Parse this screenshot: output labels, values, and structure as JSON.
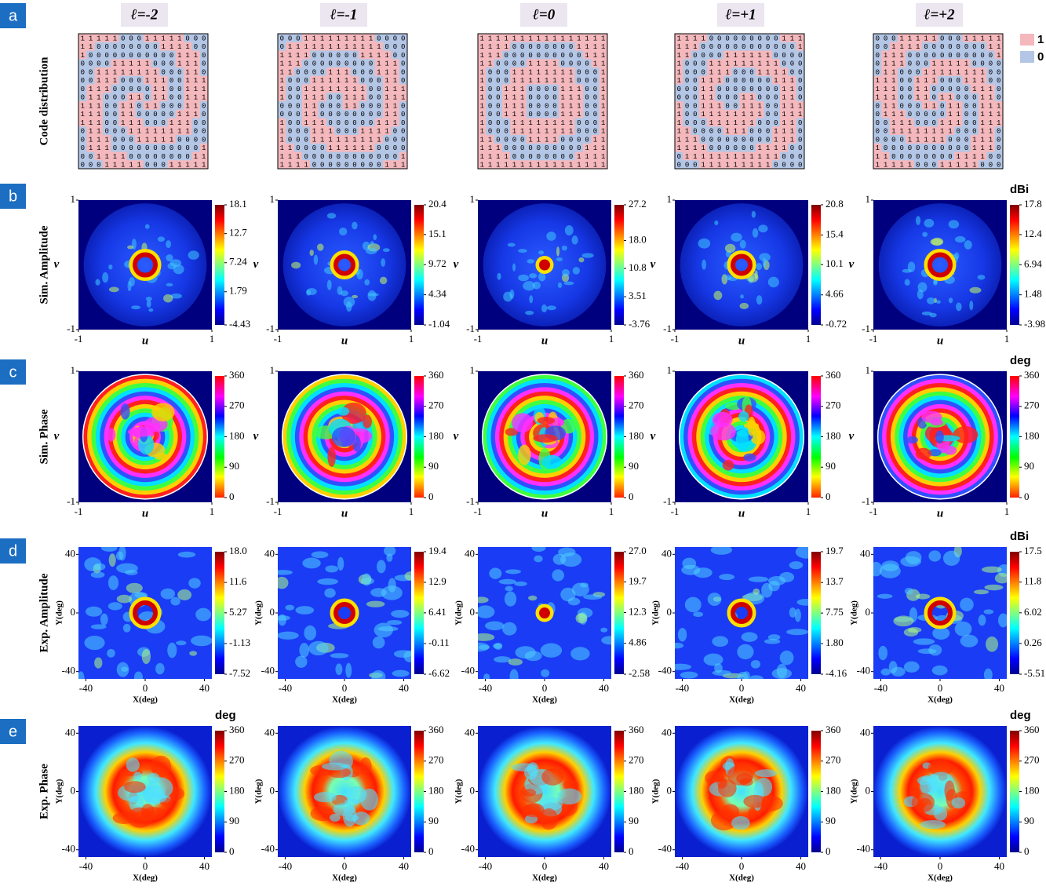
{
  "header": {
    "columns": [
      "ℓ=-2",
      "ℓ=-1",
      "ℓ=0",
      "ℓ=+1",
      "ℓ=+2"
    ]
  },
  "legend": [
    {
      "label": "1",
      "color": "#f4b8bc"
    },
    {
      "label": "0",
      "color": "#b3c6e6"
    }
  ],
  "rows": [
    {
      "letter": "a",
      "label": "Code distribution",
      "code_maps": [
        [
          "1111100011111000",
          "1100000000111100",
          "1000000000001110",
          "0000111110001110",
          "0011111111000110",
          "0011100011100111",
          "0111000001100111",
          "0110001101100111",
          "1110011011000110",
          "1110011000001110",
          "1110011100011100",
          "0110001111111100",
          "0111000111110000",
          "0111000000000001",
          "0011110000000011",
          "0001111100011111"
        ],
        [
          "0001111111110000",
          "0111111111111000",
          "1111000000111100",
          "1110000000001110",
          "1100001110001110",
          "1000111111000110",
          "1001111111100111",
          "1001110011100111",
          "0001100011000110",
          "0001100000000110",
          "1001110000001110",
          "1000111000111100",
          "1000111111111000",
          "1100001111110000",
          "1110000000000001",
          "1111000000000111"
        ],
        [
          "1111111111111111",
          "1111000000001111",
          "1110000000000111",
          "1100001111000011",
          "1000111111110001",
          "1000111111110001",
          "1001110000111001",
          "1001110000111001",
          "1001110000111001",
          "1001110000111001",
          "1000111111110001",
          "1000111111110001",
          "1100001111000011",
          "1110000000000111",
          "1111000000001111",
          "1111111111111111"
        ],
        [
          "1111000000000111",
          "1110000000000001",
          "1100001111110000",
          "1000111111111000",
          "1000111000111100",
          "1001110000001110",
          "0001100000000110",
          "0001100011000110",
          "1001110011100111",
          "1001111111100111",
          "1000111111000110",
          "1100001110001110",
          "1110000000001110",
          "1111000000111100",
          "0111111111111000",
          "0001111111110000"
        ],
        [
          "0001111100011111",
          "0011110000000011",
          "0111000000000001",
          "0111000111110000",
          "0110001111111100",
          "1110011100011100",
          "1110011000001110",
          "1110011011000110",
          "0110001101100111",
          "0111000001100111",
          "0011100011100111",
          "0011111111000110",
          "0000111110001110",
          "1000000000001110",
          "1100000000111100",
          "1111100011111000"
        ]
      ]
    },
    {
      "letter": "b",
      "label": "Sim. Amplitude",
      "x_label": "u",
      "y_label": "v",
      "xlim": [
        -1,
        1
      ],
      "ylim": [
        -1,
        1
      ],
      "xticks": [
        -1,
        1
      ],
      "yticks": [
        -1,
        1
      ],
      "colorbars": [
        {
          "lim": [
            -4.43,
            18.1
          ],
          "ticks": [
            18.1,
            12.7,
            7.24,
            1.79,
            -4.43
          ]
        },
        {
          "lim": [
            -1.04,
            20.4
          ],
          "ticks": [
            20.4,
            15.1,
            9.72,
            4.34,
            -1.04
          ]
        },
        {
          "lim": [
            -3.76,
            27.2
          ],
          "ticks": [
            27.2,
            {
              "value": 18,
              "label": "18.0"
            },
            10.8,
            3.51,
            -3.76
          ]
        },
        {
          "lim": [
            -0.72,
            20.8
          ],
          "ticks": [
            20.8,
            15.4,
            10.1,
            4.66,
            -0.72
          ]
        },
        {
          "unit": "dBi",
          "lim": [
            -3.98,
            17.8
          ],
          "ticks": [
            17.8,
            12.4,
            6.94,
            1.48,
            -3.98
          ]
        }
      ]
    },
    {
      "letter": "c",
      "label": "Sim.  Phase",
      "x_label": "u",
      "y_label": "v",
      "xlim": [
        -1,
        1
      ],
      "ylim": [
        -1,
        1
      ],
      "xticks": [
        -1,
        1
      ],
      "yticks": [
        -1,
        1
      ],
      "colorbars": [
        {
          "lim": [
            0,
            360
          ],
          "ticks": [
            360,
            270,
            180,
            90,
            0
          ]
        },
        {
          "lim": [
            0,
            360
          ],
          "ticks": [
            360,
            270,
            180,
            90,
            0
          ]
        },
        {
          "lim": [
            0,
            360
          ],
          "ticks": [
            360,
            270,
            180,
            90,
            0
          ]
        },
        {
          "lim": [
            0,
            360
          ],
          "ticks": [
            360,
            270,
            180,
            90,
            0
          ]
        },
        {
          "unit": "deg",
          "lim": [
            0,
            360
          ],
          "ticks": [
            360,
            270,
            180,
            90,
            0
          ]
        }
      ]
    },
    {
      "letter": "d",
      "label": "Exp. Amplitude",
      "x_label": "X(deg)",
      "y_label": "Y(deg)",
      "xlim": [
        -45,
        45
      ],
      "ylim": [
        -45,
        45
      ],
      "xticks": [
        -40,
        0,
        40
      ],
      "yticks": [
        -40,
        0,
        40
      ],
      "colorbars": [
        {
          "lim": [
            -7.52,
            18
          ],
          "ticks": [
            {
              "value": 18,
              "label": "18.0"
            },
            11.6,
            5.27,
            -1.13,
            -7.52
          ]
        },
        {
          "lim": [
            -6.62,
            19.4
          ],
          "ticks": [
            19.4,
            12.9,
            6.41,
            -0.11,
            -6.62
          ]
        },
        {
          "lim": [
            -2.58,
            27
          ],
          "ticks": [
            {
              "value": 27,
              "label": "27.0"
            },
            19.7,
            12.3,
            4.86,
            -2.58
          ]
        },
        {
          "lim": [
            -4.16,
            19.7
          ],
          "ticks": [
            19.7,
            13.7,
            7.75,
            {
              "value": 1.8,
              "label": "1.80"
            },
            -4.16
          ]
        },
        {
          "unit": "dBi",
          "lim": [
            -5.51,
            17.5
          ],
          "ticks": [
            17.5,
            11.8,
            6.02,
            0.26,
            -5.51
          ]
        }
      ]
    },
    {
      "letter": "e",
      "label": "Exp. Phase",
      "x_label": "X(deg)",
      "y_label": "Y(deg)",
      "xlim": [
        -45,
        45
      ],
      "ylim": [
        -45,
        45
      ],
      "xticks": [
        -40,
        0,
        40
      ],
      "yticks": [
        -40,
        0,
        40
      ],
      "colorbars": [
        {
          "unit": "deg",
          "lim": [
            0,
            360
          ],
          "ticks": [
            360,
            270,
            180,
            90,
            0
          ]
        },
        {
          "lim": [
            0,
            360
          ],
          "ticks": [
            360,
            270,
            180,
            90,
            0
          ]
        },
        {
          "lim": [
            0,
            360
          ],
          "ticks": [
            360,
            270,
            180,
            90,
            0
          ]
        },
        {
          "lim": [
            0,
            360
          ],
          "ticks": [
            360,
            270,
            180,
            90,
            0
          ]
        },
        {
          "unit": "deg",
          "lim": [
            0,
            360
          ],
          "ticks": [
            360,
            270,
            180,
            90,
            0
          ]
        }
      ]
    }
  ]
}
